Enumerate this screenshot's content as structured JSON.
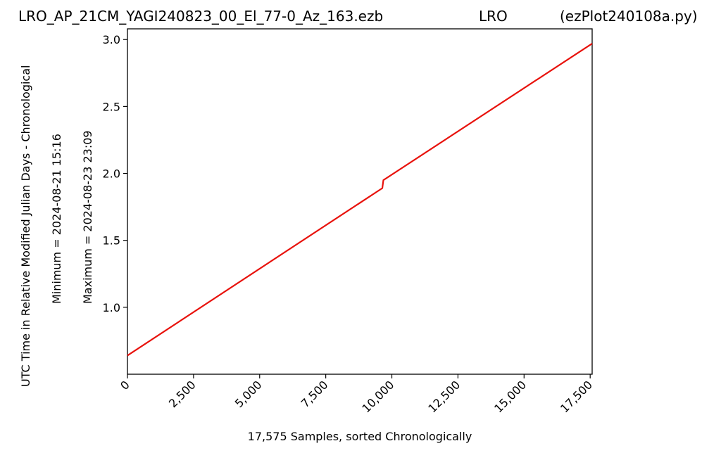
{
  "header": {
    "file_title": "LRO_AP_21CM_YAGI240823_00_El_77-0_Az_163.ezb",
    "source_title": "LRO",
    "script_title": "(ezPlot240108a.py)"
  },
  "side_labels": {
    "minimum": "Minimum = 2024-08-21   15:16",
    "maximum": "Maximum = 2024-08-23   23:09"
  },
  "colors": {
    "line": "#e8120c",
    "axes": "#000000"
  },
  "chart_data": {
    "type": "line",
    "xlabel": "17,575 Samples, sorted Chronologically",
    "ylabel": "UTC Time in Relative Modified Julian Days - Chronological",
    "xlim": [
      0,
      17575
    ],
    "ylim": [
      0.5,
      3.08
    ],
    "x_ticks": [
      0,
      2500,
      5000,
      7500,
      10000,
      12500,
      15000,
      17500
    ],
    "x_tick_labels": [
      "0",
      "2,500",
      "5,000",
      "7,500",
      "10,000",
      "12,500",
      "15,000",
      "17,500"
    ],
    "y_ticks": [
      1.0,
      1.5,
      2.0,
      2.5,
      3.0
    ],
    "y_tick_labels": [
      "1.0",
      "1.5",
      "2.0",
      "2.5",
      "3.0"
    ],
    "grid": false,
    "series": [
      {
        "x": [
          0,
          9640,
          9640,
          9680,
          17575
        ],
        "y": [
          0.64,
          1.89,
          1.89,
          1.95,
          2.97
        ]
      }
    ]
  }
}
